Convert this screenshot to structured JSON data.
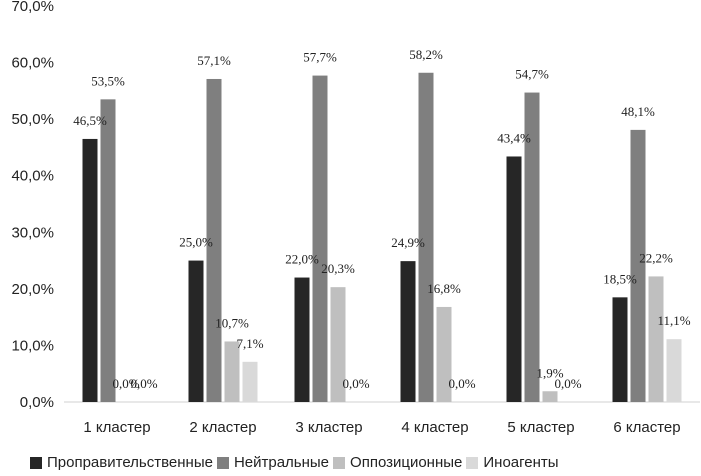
{
  "chart_data": {
    "type": "bar",
    "categories": [
      "1 кластер",
      "2 кластер",
      "3 кластер",
      "4 кластер",
      "5 кластер",
      "6 кластер"
    ],
    "series": [
      {
        "name": "Проправительственные",
        "color": "#262626",
        "values": [
          46.5,
          25.0,
          22.0,
          24.9,
          43.4,
          18.5
        ],
        "labels": [
          "46,5%",
          "25,0%",
          "22,0%",
          "24,9%",
          "43,4%",
          "18,5%"
        ]
      },
      {
        "name": "Нейтральные",
        "color": "#7f7f7f",
        "values": [
          53.5,
          57.1,
          57.7,
          58.2,
          54.7,
          48.1
        ],
        "labels": [
          "53,5%",
          "57,1%",
          "57,7%",
          "58,2%",
          "54,7%",
          "48,1%"
        ]
      },
      {
        "name": "Оппозиционные",
        "color": "#bfbfbf",
        "values": [
          0.0,
          10.7,
          20.3,
          16.8,
          1.9,
          22.2
        ],
        "labels": [
          "0,0%",
          "10,7%",
          "20,3%",
          "16,8%",
          "1,9%",
          "22,2%"
        ]
      },
      {
        "name": "Иноагенты",
        "color": "#d9d9d9",
        "values": [
          0.0,
          7.1,
          0.0,
          0.0,
          0.0,
          11.1
        ],
        "labels": [
          "0,0%",
          "7,1%",
          "0,0%",
          "0,0%",
          "0,0%",
          "11,1%"
        ]
      }
    ],
    "y_ticks": [
      "0,0%",
      "10,0%",
      "20,0%",
      "30,0%",
      "40,0%",
      "50,0%",
      "60,0%",
      "70,0%"
    ],
    "ylim": [
      0,
      70
    ],
    "grid": false,
    "legend": "bottom"
  }
}
